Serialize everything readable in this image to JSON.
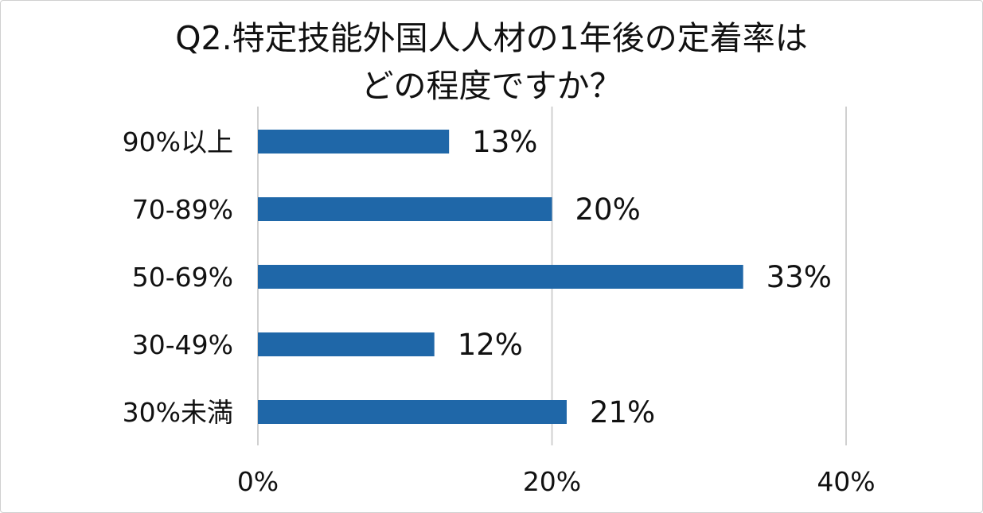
{
  "chart_data": {
    "type": "bar",
    "orientation": "horizontal",
    "title_lines": [
      "Q2.特定技能外国人人材の1年後の定着率は",
      "どの程度ですか？"
    ],
    "categories": [
      "90%以上",
      "70-89%",
      "50-69%",
      "30-49%",
      "30%未満"
    ],
    "values": [
      13,
      20,
      33,
      12,
      21
    ],
    "value_labels": [
      "13%",
      "20%",
      "33%",
      "12%",
      "21%"
    ],
    "xlim": [
      0,
      40
    ],
    "x_ticks": [
      0,
      20,
      40
    ],
    "x_tick_labels": [
      "0%",
      "20%",
      "40%"
    ],
    "grid": true,
    "bar_color": "#1f67a8",
    "grid_color": "#d0d0d0"
  }
}
